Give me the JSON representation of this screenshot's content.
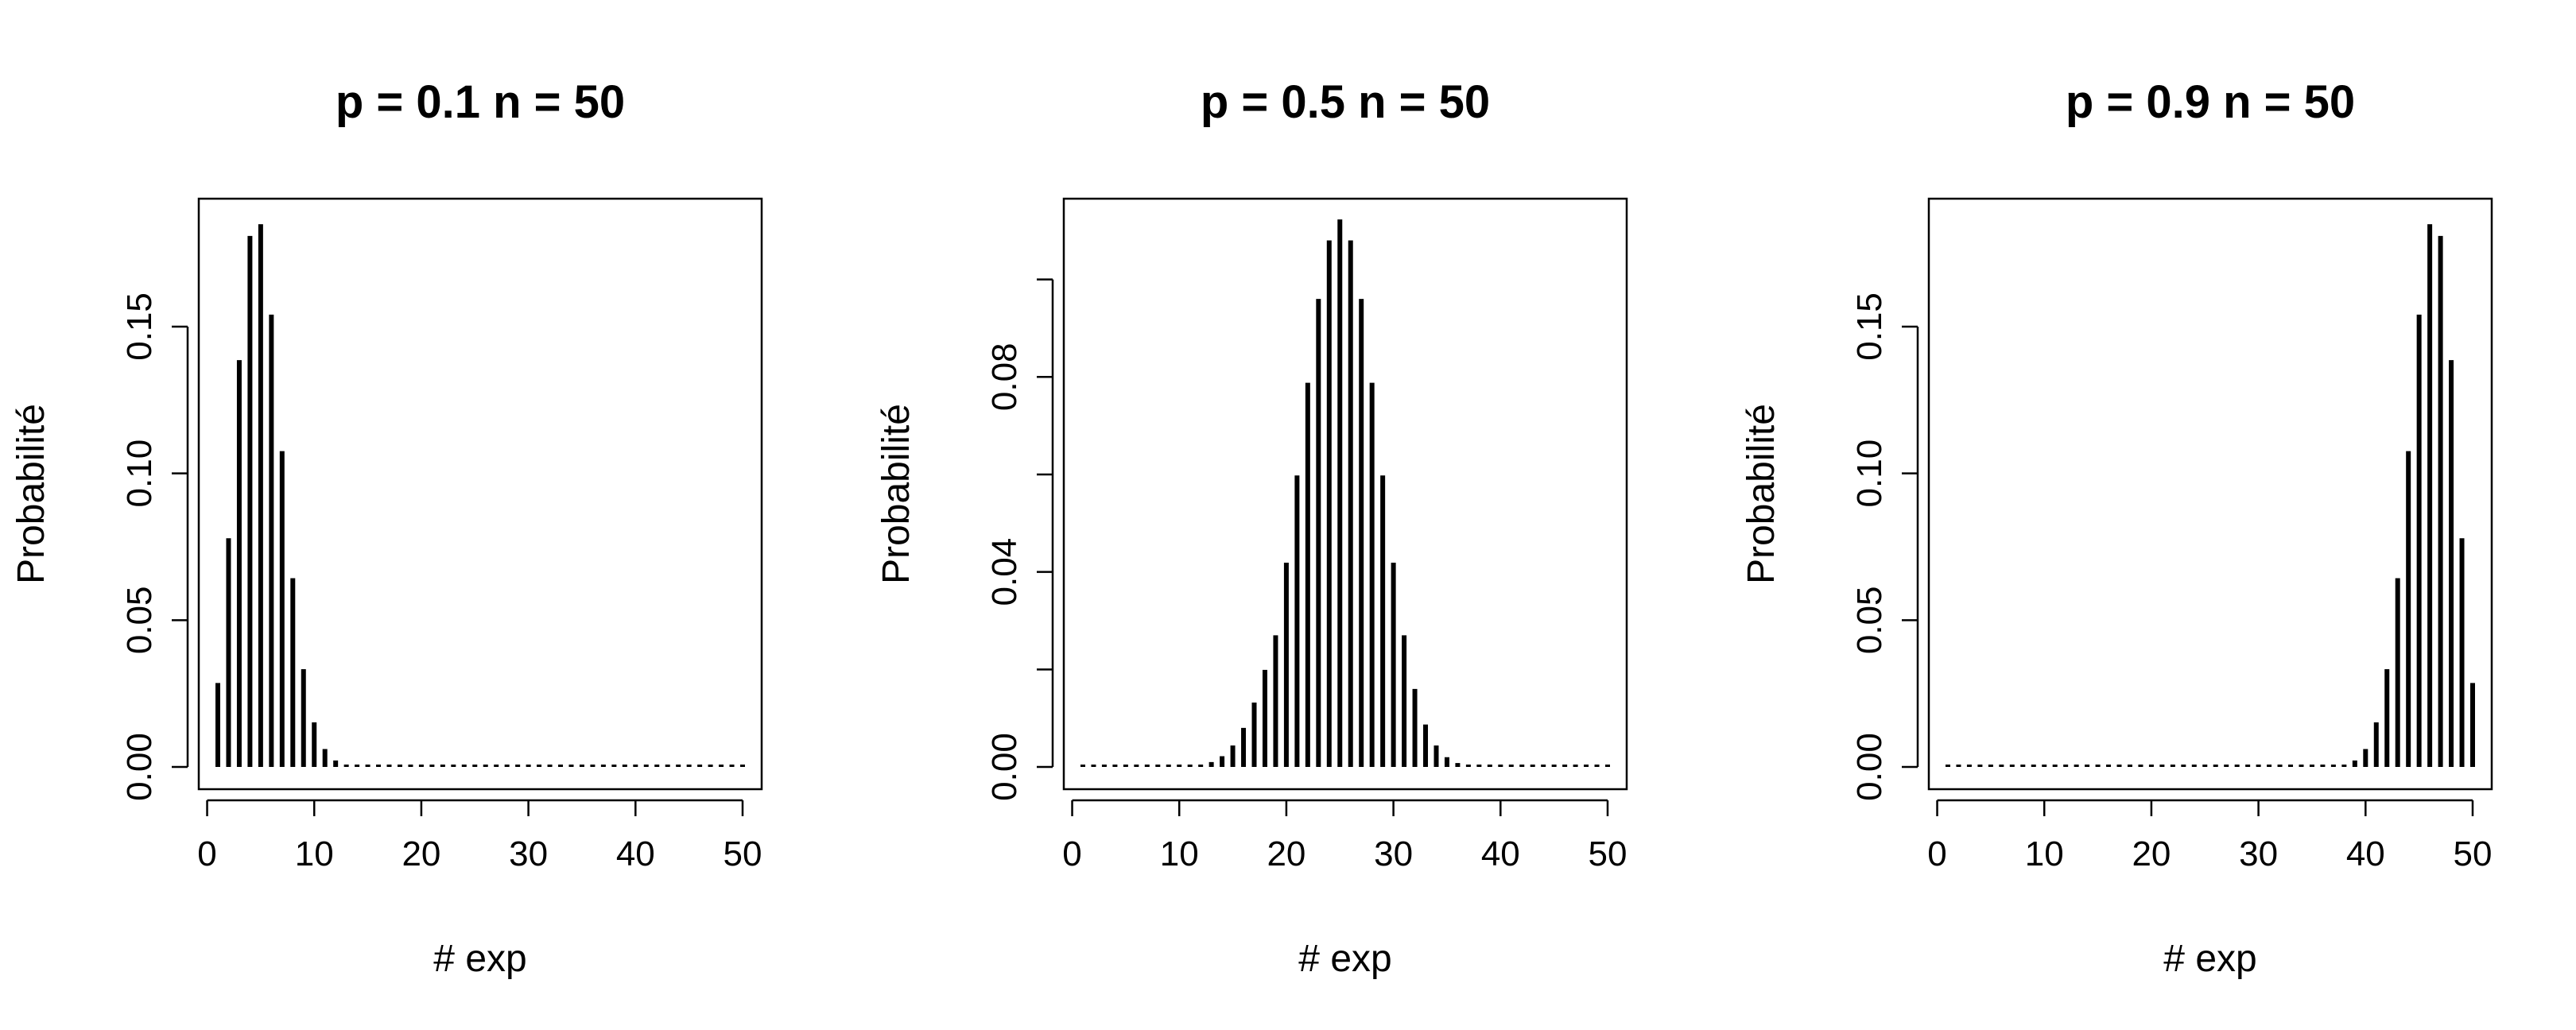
{
  "chart_data": [
    {
      "type": "bar",
      "title": "p = 0.1 n = 50",
      "xlabel": "# exp",
      "ylabel": "Probabilité",
      "xlim": [
        0,
        50
      ],
      "ylim": [
        0,
        0.186
      ],
      "xticks": [
        0,
        10,
        20,
        30,
        40,
        50
      ],
      "xtick_labels": [
        "0",
        "10",
        "20",
        "30",
        "40",
        "50"
      ],
      "yticks": [
        0,
        0.05,
        0.1,
        0.15
      ],
      "ytick_labels": [
        "0.00",
        "0.05",
        "0.10",
        "0.15"
      ],
      "grid": false,
      "color": "#000000",
      "x": [
        1,
        2,
        3,
        4,
        5,
        6,
        7,
        8,
        9,
        10,
        11,
        12,
        13,
        14,
        15,
        16,
        17,
        18,
        19,
        20,
        21,
        22,
        23,
        24,
        25,
        26,
        27,
        28,
        29,
        30,
        31,
        32,
        33,
        34,
        35,
        36,
        37,
        38,
        39,
        40,
        41,
        42,
        43,
        44,
        45,
        46,
        47,
        48,
        49,
        50
      ],
      "values": [
        0.0286,
        0.0779,
        0.1386,
        0.1809,
        0.1849,
        0.1541,
        0.1076,
        0.0643,
        0.0333,
        0.0152,
        0.0061,
        0.0022,
        0.0007,
        0.0002,
        0.0001,
        0,
        0,
        0,
        0,
        0,
        0,
        0,
        0,
        0,
        0,
        0,
        0,
        0,
        0,
        0,
        0,
        0,
        0,
        0,
        0,
        0,
        0,
        0,
        0,
        0,
        0,
        0,
        0,
        0,
        0,
        0,
        0,
        0,
        0,
        0
      ]
    },
    {
      "type": "bar",
      "title": "p = 0.5 n = 50",
      "xlabel": "# exp",
      "ylabel": "Probabilité",
      "xlim": [
        0,
        50
      ],
      "ylim": [
        0,
        0.112
      ],
      "xticks": [
        0,
        10,
        20,
        30,
        40,
        50
      ],
      "xtick_labels": [
        "0",
        "10",
        "20",
        "30",
        "40",
        "50"
      ],
      "yticks": [
        0,
        0.02,
        0.04,
        0.06,
        0.08,
        0.1
      ],
      "ytick_labels": [
        "0.00",
        "",
        "0.04",
        "",
        "0.08",
        ""
      ],
      "grid": false,
      "color": "#000000",
      "x": [
        1,
        2,
        3,
        4,
        5,
        6,
        7,
        8,
        9,
        10,
        11,
        12,
        13,
        14,
        15,
        16,
        17,
        18,
        19,
        20,
        21,
        22,
        23,
        24,
        25,
        26,
        27,
        28,
        29,
        30,
        31,
        32,
        33,
        34,
        35,
        36,
        37,
        38,
        39,
        40,
        41,
        42,
        43,
        44,
        45,
        46,
        47,
        48,
        49,
        50
      ],
      "values": [
        0,
        0,
        0,
        0,
        0,
        0,
        0,
        0,
        0,
        0,
        0.0001,
        0.0004,
        0.001,
        0.0022,
        0.0044,
        0.008,
        0.0132,
        0.0199,
        0.027,
        0.0419,
        0.0598,
        0.0788,
        0.096,
        0.108,
        0.1123,
        0.108,
        0.096,
        0.0788,
        0.0598,
        0.0419,
        0.027,
        0.016,
        0.0087,
        0.0044,
        0.002,
        0.0008,
        0.0003,
        0.0001,
        0,
        0,
        0,
        0,
        0,
        0,
        0,
        0,
        0,
        0,
        0,
        0
      ]
    },
    {
      "type": "bar",
      "title": "p = 0.9 n = 50",
      "xlabel": "# exp",
      "ylabel": "Probabilité",
      "xlim": [
        0,
        50
      ],
      "ylim": [
        0,
        0.186
      ],
      "xticks": [
        0,
        10,
        20,
        30,
        40,
        50
      ],
      "xtick_labels": [
        "0",
        "10",
        "20",
        "30",
        "40",
        "50"
      ],
      "yticks": [
        0,
        0.05,
        0.1,
        0.15
      ],
      "ytick_labels": [
        "0.00",
        "0.05",
        "0.10",
        "0.15"
      ],
      "grid": false,
      "color": "#000000",
      "x": [
        1,
        2,
        3,
        4,
        5,
        6,
        7,
        8,
        9,
        10,
        11,
        12,
        13,
        14,
        15,
        16,
        17,
        18,
        19,
        20,
        21,
        22,
        23,
        24,
        25,
        26,
        27,
        28,
        29,
        30,
        31,
        32,
        33,
        34,
        35,
        36,
        37,
        38,
        39,
        40,
        41,
        42,
        43,
        44,
        45,
        46,
        47,
        48,
        49,
        50
      ],
      "values": [
        0,
        0,
        0,
        0,
        0,
        0,
        0,
        0,
        0,
        0,
        0,
        0,
        0,
        0,
        0,
        0,
        0,
        0,
        0,
        0,
        0,
        0,
        0,
        0,
        0,
        0,
        0,
        0,
        0,
        0,
        0,
        0,
        0,
        0,
        0,
        0.0001,
        0.0002,
        0.0007,
        0.0022,
        0.0061,
        0.0152,
        0.0333,
        0.0643,
        0.1076,
        0.1541,
        0.1849,
        0.1809,
        0.1386,
        0.0779,
        0.0286
      ]
    }
  ]
}
